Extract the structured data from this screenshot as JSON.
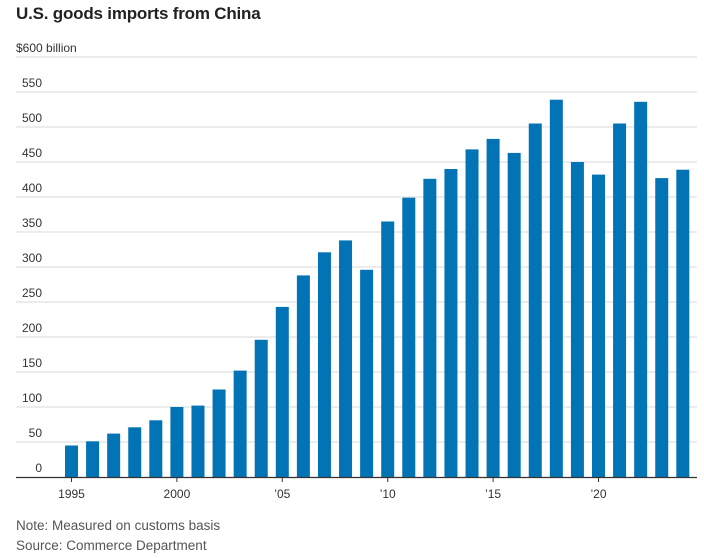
{
  "chart_data": {
    "type": "bar",
    "title": "U.S. goods imports from China",
    "unit_label": "$600 billion",
    "ylabel": "",
    "xlabel": "",
    "ylim": [
      0,
      600
    ],
    "y_ticks": [
      0,
      50,
      100,
      150,
      200,
      250,
      300,
      350,
      400,
      450,
      500,
      550
    ],
    "x_ticks": [
      {
        "year": 1995,
        "label": "1995"
      },
      {
        "year": 2000,
        "label": "2000"
      },
      {
        "year": 2005,
        "label": "’05"
      },
      {
        "year": 2010,
        "label": "’10"
      },
      {
        "year": 2015,
        "label": "’15"
      },
      {
        "year": 2020,
        "label": "’20"
      }
    ],
    "categories": [
      1995,
      1996,
      1997,
      1998,
      1999,
      2000,
      2001,
      2002,
      2003,
      2004,
      2005,
      2006,
      2007,
      2008,
      2009,
      2010,
      2011,
      2012,
      2013,
      2014,
      2015,
      2016,
      2017,
      2018,
      2019,
      2020,
      2021,
      2022,
      2023,
      2024
    ],
    "values": [
      45,
      51,
      62,
      71,
      81,
      100,
      102,
      125,
      152,
      196,
      243,
      288,
      321,
      338,
      296,
      365,
      399,
      426,
      440,
      468,
      483,
      463,
      505,
      539,
      450,
      432,
      505,
      536,
      427,
      439
    ],
    "bar_color": "#0274b6",
    "grid": true
  },
  "notes": {
    "note": "Note: Measured on customs basis",
    "source": "Source: Commerce Department"
  }
}
